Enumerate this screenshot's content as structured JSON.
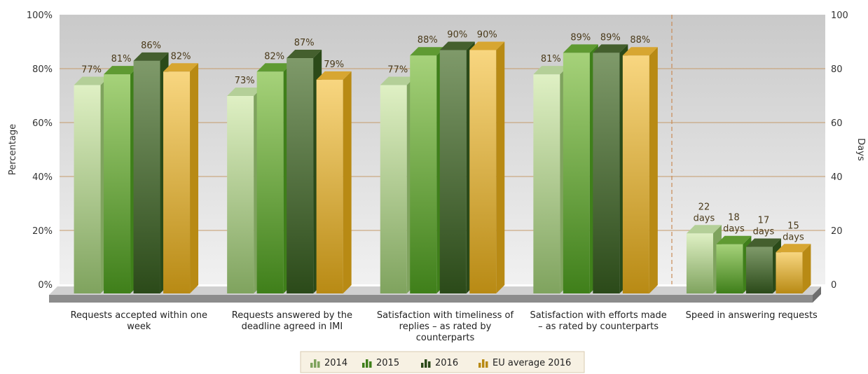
{
  "chart_data": {
    "type": "bar",
    "ylabel": "Percentage",
    "y2label": "Days",
    "ylim": [
      0,
      100
    ],
    "y2lim": [
      0,
      100
    ],
    "yticks": [
      "0%",
      "20%",
      "40%",
      "60%",
      "80%",
      "100%"
    ],
    "y2ticks": [
      "0",
      "20",
      "40",
      "60",
      "80",
      "100"
    ],
    "categories": [
      [
        "Requests accepted within one",
        "week"
      ],
      [
        "Requests answered by the",
        "deadline agreed in IMI"
      ],
      [
        "Satisfaction with timeliness of",
        "replies – as rated by",
        "counterparts"
      ],
      [
        "Satisfaction with efforts made",
        "– as rated by counterparts"
      ],
      [
        "Speed in answering requests"
      ]
    ],
    "series": [
      {
        "name": "2014",
        "values": [
          77,
          73,
          77,
          81,
          22
        ],
        "labels": [
          "77%",
          "73%",
          "77%",
          "81%",
          "22 days"
        ]
      },
      {
        "name": "2015",
        "values": [
          81,
          82,
          88,
          89,
          18
        ],
        "labels": [
          "81%",
          "82%",
          "88%",
          "89%",
          "18 days"
        ]
      },
      {
        "name": "2016",
        "values": [
          86,
          87,
          90,
          89,
          17
        ],
        "labels": [
          "86%",
          "87%",
          "90%",
          "89%",
          "17 days"
        ]
      },
      {
        "name": "EU average 2016",
        "values": [
          82,
          79,
          90,
          88,
          15
        ],
        "labels": [
          "82%",
          "79%",
          "90%",
          "88%",
          "15 days"
        ]
      }
    ],
    "secondary_axis_category_index": 4,
    "colors": {
      "2014": [
        "#dff0c4",
        "#7fa35e",
        "#b4cf98"
      ],
      "2015": [
        "#a6d27a",
        "#3f7f1a",
        "#5f9a32"
      ],
      "2016": [
        "#7f9a6a",
        "#2b4a19",
        "#445f2e"
      ],
      "EU average 2016": [
        "#f8d680",
        "#b88a14",
        "#d7a631"
      ]
    },
    "grid": true,
    "legend_position": "bottom-center"
  }
}
